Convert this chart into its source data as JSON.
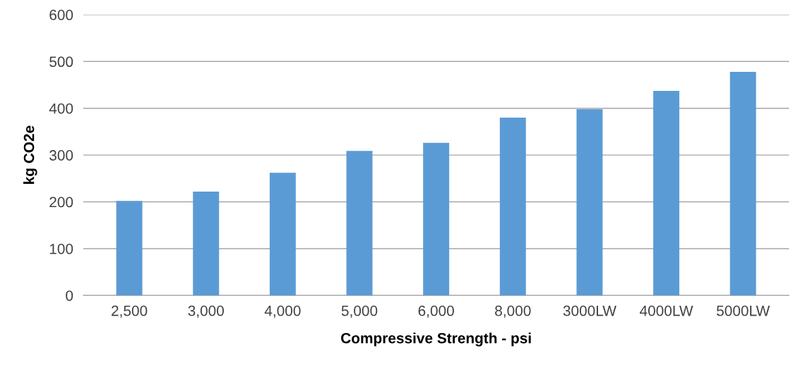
{
  "chart_data": {
    "type": "bar",
    "xlabel": "Compressive Strength - psi",
    "ylabel": "kg CO2e",
    "categories": [
      "2,500",
      "3,000",
      "4,000",
      "5,000",
      "6,000",
      "8,000",
      "3000LW",
      "4000LW",
      "5000LW"
    ],
    "values": [
      202,
      222,
      262,
      309,
      326,
      380,
      398,
      437,
      478
    ],
    "color": "#5b9bd5",
    "ylim": [
      0,
      600
    ],
    "yticks": [
      0,
      100,
      200,
      300,
      400,
      500,
      600
    ],
    "grid": "y"
  }
}
